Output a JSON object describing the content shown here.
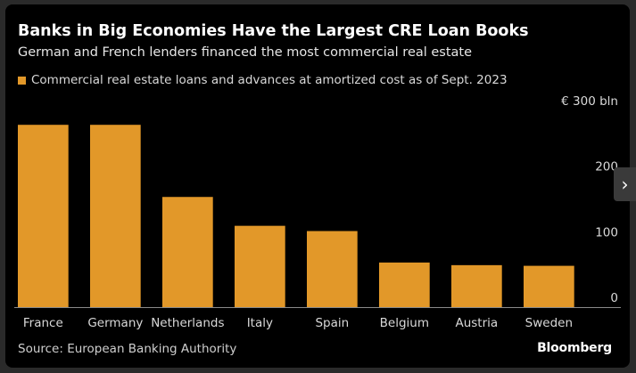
{
  "chart_data": {
    "type": "bar",
    "title": "Banks in Big Economies Have the Largest CRE Loan Books",
    "subtitle": "German and French lenders financed the most commercial real estate",
    "series": [
      {
        "name": "Commercial real estate loans and advances at amortized cost as of Sept. 2023",
        "color": "#e29829",
        "values": [
          278,
          278,
          168,
          124,
          116,
          68,
          64,
          63
        ]
      }
    ],
    "categories": [
      "France",
      "Germany",
      "Netherlands",
      "Italy",
      "Spain",
      "Belgium",
      "Austria",
      "Sweden"
    ],
    "ylim": [
      0,
      300
    ],
    "yticks": [
      {
        "value": 0,
        "label": "0"
      },
      {
        "value": 100,
        "label": "100"
      },
      {
        "value": 200,
        "label": "200"
      },
      {
        "value": 300,
        "label": "€ 300 bln"
      }
    ],
    "grid": false,
    "legend_position": "top-left"
  },
  "footer": {
    "source": "Source: European Banking Authority",
    "brand": "Bloomberg"
  },
  "nav": {
    "next_icon": "chevron-right-icon",
    "next_glyph": "›"
  },
  "colors": {
    "background": "#000000",
    "bar": "#e29829",
    "text": "#ffffff"
  }
}
